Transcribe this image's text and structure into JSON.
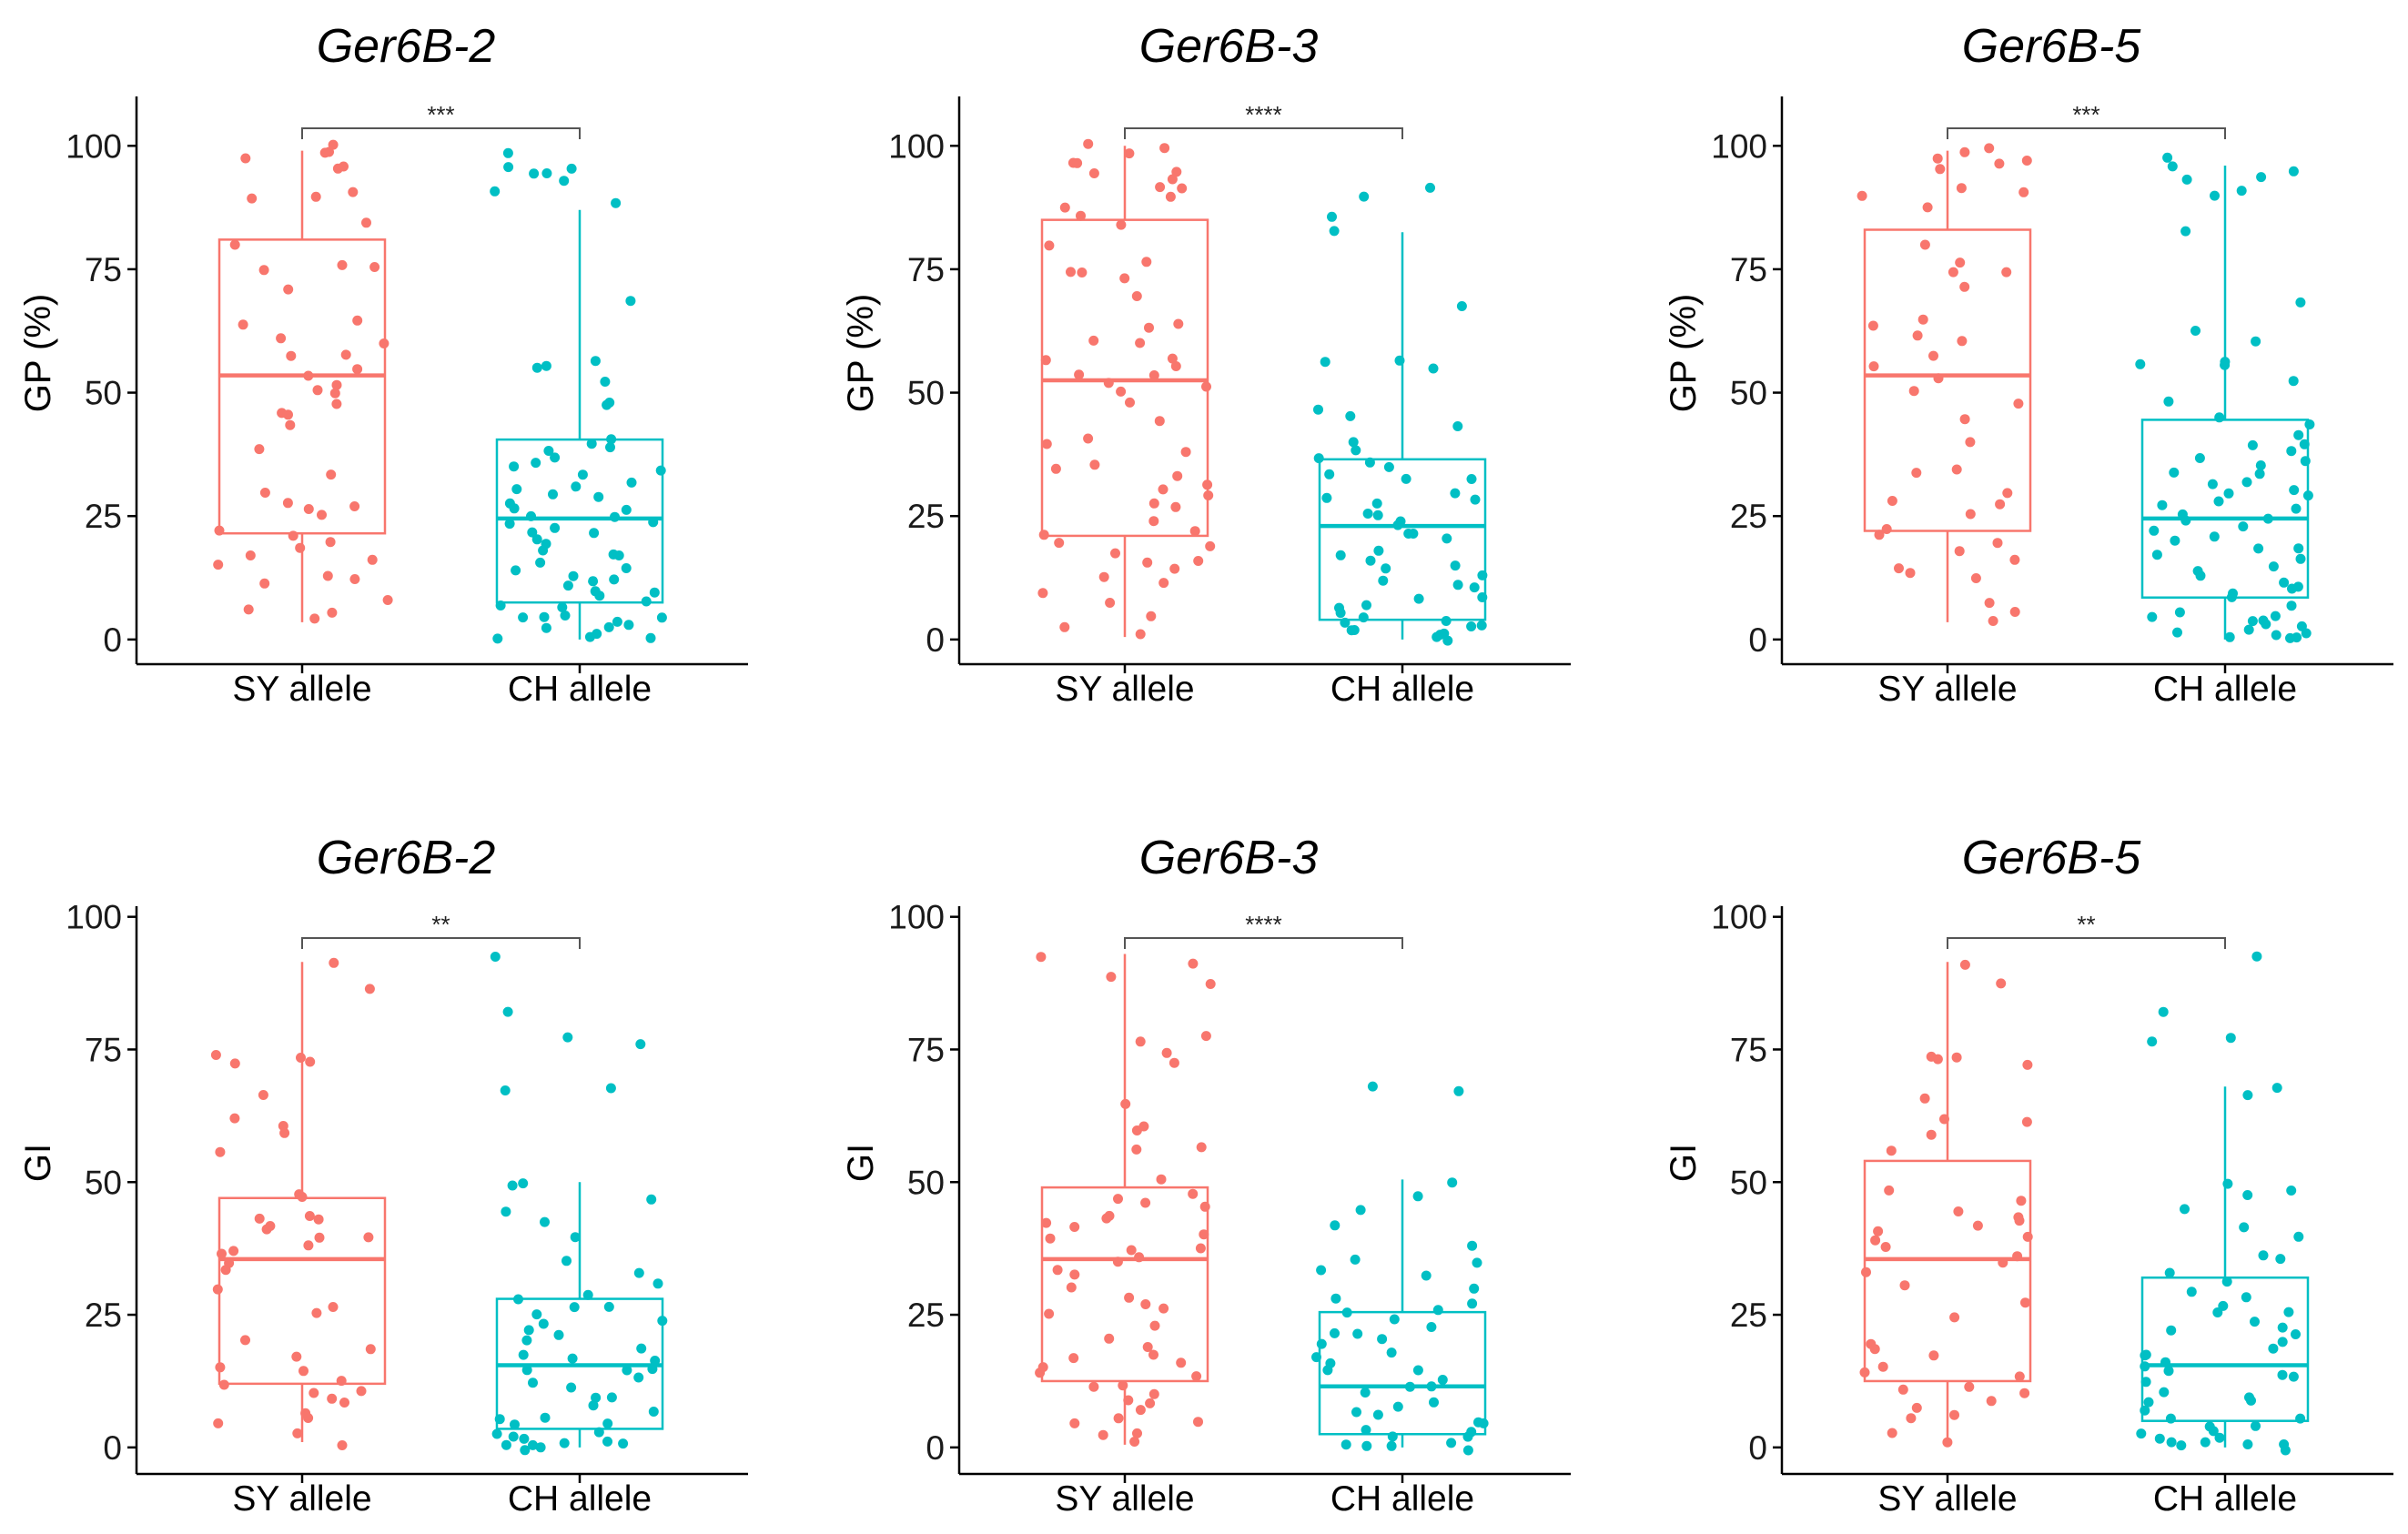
{
  "colors": {
    "sy": "#F8766D",
    "ch": "#00BFC4",
    "axis": "#000000",
    "bracket": "#555555"
  },
  "chart_data": [
    {
      "type": "box",
      "title": "Ger6B-2",
      "ylabel": "GP (%)",
      "ylim": [
        -5,
        110
      ],
      "yticks": [
        "0",
        "25",
        "50",
        "75",
        "100"
      ],
      "categories": [
        "SY allele",
        "CH allele"
      ],
      "series": [
        {
          "name": "SY allele",
          "box": {
            "q1": 21.5,
            "median": 53.5,
            "q3": 81,
            "whisker_low": 3.5,
            "whisker_high": 99
          },
          "points": [
            99,
            98,
            100,
            97,
            95,
            96,
            91,
            90,
            89,
            84,
            80,
            76,
            75,
            75,
            71,
            65,
            64,
            61,
            60,
            58,
            57,
            55,
            53,
            52,
            51,
            50,
            48,
            46,
            45,
            44,
            39,
            34,
            30,
            28,
            27,
            26,
            25,
            22,
            21,
            20,
            18,
            17,
            16,
            15,
            13,
            12,
            11,
            8,
            6,
            5,
            4
          ]
        },
        {
          "name": "CH allele",
          "box": {
            "q1": 7.5,
            "median": 24.5,
            "q3": 40.5,
            "whisker_low": 0,
            "whisker_high": 87
          },
          "points": [
            98,
            96,
            95,
            94,
            94,
            93,
            91,
            88,
            68,
            56,
            56,
            55,
            52,
            48,
            47,
            41,
            40,
            39,
            38,
            37,
            36,
            35,
            34,
            33,
            32,
            31,
            30,
            30,
            29,
            28,
            27,
            26,
            25,
            25,
            24,
            23,
            22,
            22,
            21,
            20,
            19,
            18,
            17,
            17,
            16,
            15,
            14,
            13,
            12,
            12,
            11,
            10,
            9,
            9,
            8,
            7,
            6,
            5,
            5,
            4,
            4,
            3,
            3,
            2,
            2,
            1,
            1,
            0,
            0
          ]
        }
      ],
      "significance": "***"
    },
    {
      "type": "box",
      "title": "Ger6B-3",
      "ylabel": "GP (%)",
      "ylim": [
        -5,
        110
      ],
      "yticks": [
        "0",
        "25",
        "50",
        "75",
        "100"
      ],
      "categories": [
        "SY allele",
        "CH allele"
      ],
      "series": [
        {
          "name": "SY allele",
          "box": {
            "q1": 21,
            "median": 52.5,
            "q3": 85,
            "whisker_low": 0.5,
            "whisker_high": 100
          },
          "points": [
            100,
            99,
            98,
            97,
            96,
            95,
            94,
            93,
            92,
            91,
            90,
            88,
            86,
            84,
            80,
            76,
            75,
            74,
            73,
            70,
            64,
            63,
            61,
            60,
            57,
            56,
            55,
            54,
            53,
            52,
            51,
            50,
            48,
            44,
            41,
            40,
            38,
            36,
            34,
            33,
            31,
            30,
            29,
            28,
            27,
            24,
            22,
            21,
            20,
            19,
            18,
            16,
            15,
            14,
            13,
            12,
            9,
            7,
            5,
            3,
            1
          ]
        },
        {
          "name": "CH allele",
          "box": {
            "q1": 4,
            "median": 23,
            "q3": 36.5,
            "whisker_low": 0,
            "whisker_high": 82.5
          },
          "points": [
            92,
            90,
            86,
            83,
            68,
            56,
            56,
            55,
            47,
            45,
            43,
            40,
            38,
            37,
            36,
            35,
            34,
            33,
            32,
            30,
            29,
            28,
            27,
            26,
            25,
            24,
            23,
            22,
            21,
            20,
            18,
            17,
            16,
            15,
            14,
            13,
            12,
            11,
            10,
            9,
            8,
            7,
            6,
            5,
            5,
            4,
            4,
            3,
            3,
            2,
            2,
            1,
            1,
            0,
            0
          ]
        }
      ],
      "significance": "****"
    },
    {
      "type": "box",
      "title": "Ger6B-5",
      "ylabel": "GP (%)",
      "ylim": [
        -5,
        110
      ],
      "yticks": [
        "0",
        "25",
        "50",
        "75",
        "100"
      ],
      "categories": [
        "SY allele",
        "CH allele"
      ],
      "series": [
        {
          "name": "SY allele",
          "box": {
            "q1": 22,
            "median": 53.5,
            "q3": 83,
            "whisker_low": 3.5,
            "whisker_high": 99
          },
          "points": [
            100,
            99,
            98,
            97,
            96,
            95,
            92,
            91,
            90,
            88,
            80,
            76,
            75,
            75,
            72,
            65,
            64,
            61,
            60,
            57,
            55,
            53,
            50,
            48,
            45,
            40,
            35,
            34,
            30,
            28,
            27,
            25,
            22,
            21,
            20,
            18,
            16,
            14,
            13,
            12,
            8,
            5,
            4
          ]
        },
        {
          "name": "CH allele",
          "box": {
            "q1": 8.5,
            "median": 24.5,
            "q3": 44.5,
            "whisker_low": 0,
            "whisker_high": 96
          },
          "points": [
            98,
            96,
            95,
            94,
            93,
            91,
            90,
            83,
            68,
            63,
            60,
            56,
            56,
            55,
            52,
            48,
            45,
            43,
            42,
            40,
            39,
            38,
            37,
            36,
            35,
            34,
            33,
            32,
            31,
            30,
            30,
            29,
            28,
            27,
            26,
            25,
            25,
            24,
            23,
            22,
            21,
            20,
            19,
            18,
            17,
            16,
            15,
            14,
            13,
            12,
            11,
            10,
            9,
            8,
            7,
            6,
            5,
            5,
            4,
            4,
            3,
            3,
            2,
            2,
            1,
            1,
            0,
            0,
            0
          ]
        }
      ],
      "significance": "***"
    },
    {
      "type": "box",
      "title": "Ger6B-2",
      "ylabel": "GI",
      "ylim": [
        -5,
        102
      ],
      "yticks": [
        "0",
        "25",
        "50",
        "75",
        "100"
      ],
      "categories": [
        "SY allele",
        "CH allele"
      ],
      "series": [
        {
          "name": "SY allele",
          "box": {
            "q1": 12,
            "median": 35.5,
            "q3": 47,
            "whisker_low": 1,
            "whisker_high": 91.5
          },
          "points": [
            91,
            87,
            74,
            74,
            73,
            72,
            66,
            62,
            61,
            59,
            56,
            48,
            47,
            44,
            43,
            43,
            42,
            41,
            40,
            39,
            38,
            37,
            36,
            35,
            33,
            30,
            27,
            25,
            20,
            19,
            17,
            15,
            14,
            13,
            12,
            11,
            10,
            9,
            8,
            7,
            6,
            5,
            3,
            1
          ]
        },
        {
          "name": "CH allele",
          "box": {
            "q1": 3.5,
            "median": 15.5,
            "q3": 28,
            "whisker_low": 0,
            "whisker_high": 50
          },
          "points": [
            93,
            82,
            77,
            76,
            68,
            67,
            50,
            49,
            47,
            45,
            42,
            40,
            35,
            33,
            31,
            29,
            28,
            27,
            26,
            25,
            24,
            23,
            22,
            21,
            20,
            19,
            18,
            17,
            16,
            15,
            15,
            14,
            13,
            12,
            11,
            10,
            9,
            8,
            7,
            6,
            5,
            4,
            4,
            3,
            3,
            2,
            2,
            1,
            1,
            1,
            0,
            0,
            0,
            0
          ]
        }
      ],
      "significance": "**"
    },
    {
      "type": "box",
      "title": "Ger6B-3",
      "ylabel": "GI",
      "ylim": [
        -5,
        102
      ],
      "yticks": [
        "0",
        "25",
        "50",
        "75",
        "100"
      ],
      "categories": [
        "SY allele",
        "CH allele"
      ],
      "series": [
        {
          "name": "SY allele",
          "box": {
            "q1": 12.5,
            "median": 35.5,
            "q3": 49,
            "whisker_low": 0.5,
            "whisker_high": 93
          },
          "points": [
            93,
            91,
            89,
            87,
            77,
            76,
            74,
            73,
            65,
            61,
            60,
            57,
            56,
            50,
            48,
            47,
            46,
            45,
            44,
            43,
            42,
            41,
            40,
            39,
            38,
            37,
            36,
            35,
            34,
            32,
            30,
            28,
            27,
            26,
            25,
            23,
            20,
            19,
            18,
            17,
            16,
            15,
            14,
            13,
            12,
            11,
            10,
            9,
            8,
            7,
            6,
            5,
            4,
            3,
            2,
            1
          ]
        },
        {
          "name": "CH allele",
          "box": {
            "q1": 2.5,
            "median": 11.5,
            "q3": 25.5,
            "whisker_low": 0,
            "whisker_high": 50.5
          },
          "points": [
            68,
            67,
            50,
            47,
            45,
            42,
            38,
            36,
            35,
            33,
            32,
            30,
            28,
            27,
            26,
            25,
            24,
            23,
            22,
            21,
            20,
            19,
            18,
            17,
            16,
            15,
            14,
            13,
            12,
            11,
            10,
            9,
            8,
            7,
            6,
            5,
            4,
            3,
            3,
            2,
            2,
            1,
            1,
            0,
            0,
            0
          ]
        }
      ],
      "significance": "****"
    },
    {
      "type": "box",
      "title": "Ger6B-5",
      "ylabel": "GI",
      "ylim": [
        -5,
        102
      ],
      "yticks": [
        "0",
        "25",
        "50",
        "75",
        "100"
      ],
      "categories": [
        "SY allele",
        "CH allele"
      ],
      "series": [
        {
          "name": "SY allele",
          "box": {
            "q1": 12.5,
            "median": 35.5,
            "q3": 54,
            "whisker_low": 1,
            "whisker_high": 91.5
          },
          "points": [
            91,
            87,
            74,
            74,
            73,
            72,
            66,
            62,
            61,
            59,
            56,
            48,
            47,
            44,
            43,
            43,
            42,
            41,
            40,
            39,
            38,
            36,
            35,
            33,
            30,
            27,
            25,
            20,
            19,
            17,
            15,
            14,
            13,
            12,
            11,
            10,
            9,
            8,
            6,
            5,
            3,
            1
          ]
        },
        {
          "name": "CH allele",
          "box": {
            "q1": 5,
            "median": 15.5,
            "q3": 32,
            "whisker_low": 0,
            "whisker_high": 68
          },
          "points": [
            93,
            82,
            77,
            76,
            68,
            67,
            50,
            49,
            47,
            45,
            42,
            40,
            36,
            35,
            33,
            31,
            29,
            28,
            27,
            26,
            25,
            24,
            23,
            22,
            21,
            20,
            19,
            18,
            17,
            16,
            15,
            15,
            14,
            13,
            12,
            11,
            10,
            9,
            8,
            7,
            6,
            5,
            4,
            4,
            3,
            3,
            2,
            2,
            1,
            1,
            1,
            0,
            0,
            0
          ]
        }
      ],
      "significance": "**"
    }
  ]
}
